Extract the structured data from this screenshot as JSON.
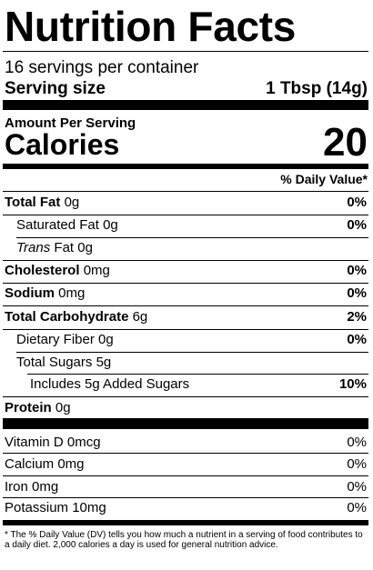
{
  "title": "Nutrition Facts",
  "servings_per_container": "16 servings per container",
  "serving_size_label": "Serving size",
  "serving_size_value": "1 Tbsp (14g)",
  "amount_per_serving": "Amount Per Serving",
  "calories_label": "Calories",
  "calories_value": "20",
  "daily_value_header": "% Daily Value*",
  "nutrients": {
    "total_fat": {
      "label": "Total Fat",
      "amount": "0g",
      "dv": "0%"
    },
    "saturated_fat": {
      "label": "Saturated Fat",
      "amount": "0g",
      "dv": "0%"
    },
    "trans_fat": {
      "label_italic": "Trans",
      "label": "Fat",
      "amount": "0g"
    },
    "cholesterol": {
      "label": "Cholesterol",
      "amount": "0mg",
      "dv": "0%"
    },
    "sodium": {
      "label": "Sodium",
      "amount": "0mg",
      "dv": "0%"
    },
    "total_carbohydrate": {
      "label": "Total Carbohydrate",
      "amount": "6g",
      "dv": "2%"
    },
    "dietary_fiber": {
      "label": "Dietary Fiber",
      "amount": "0g",
      "dv": "0%"
    },
    "total_sugars": {
      "label": "Total Sugars",
      "amount": "5g"
    },
    "added_sugars": {
      "label": "Includes 5g Added Sugars",
      "dv": "10%"
    },
    "protein": {
      "label": "Protein",
      "amount": "0g"
    }
  },
  "vitamins": [
    {
      "label": "Vitamin D 0mcg",
      "dv": "0%"
    },
    {
      "label": "Calcium 0mg",
      "dv": "0%"
    },
    {
      "label": "Iron 0mg",
      "dv": "0%"
    },
    {
      "label": "Potassium 10mg",
      "dv": "0%"
    }
  ],
  "footnote": "* The % Daily Value (DV) tells you how much a nutrient in a serving of food contributes to a daily diet. 2,000 calories a day is used for general nutrition advice."
}
